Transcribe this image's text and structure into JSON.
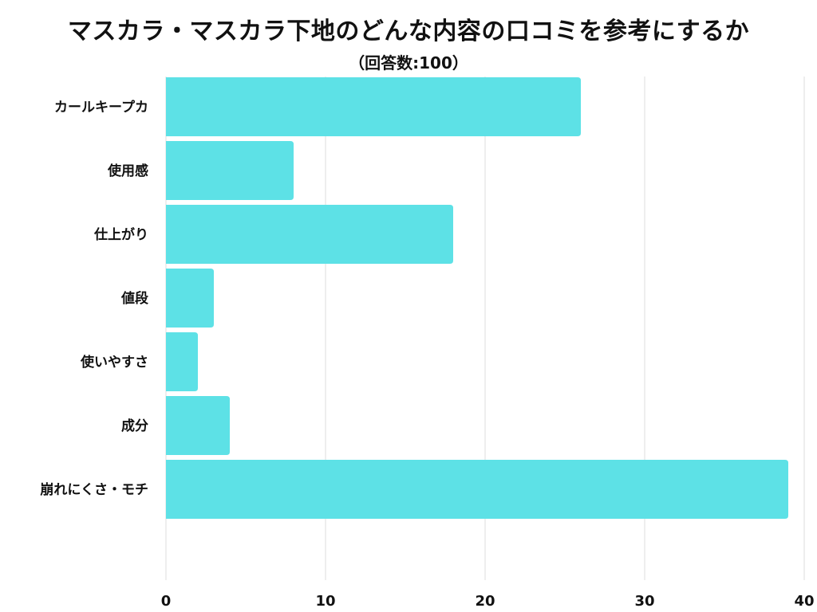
{
  "chart_data": {
    "type": "bar",
    "orientation": "horizontal",
    "title": "マスカラ・マスカラ下地のどんな内容の口コミを参考にするか",
    "subtitle": "（回答数:100）",
    "categories": [
      "カールキープカ",
      "使用感",
      "仕上がり",
      "値段",
      "使いやすさ",
      "成分",
      "崩れにくさ・モチ"
    ],
    "values": [
      26,
      8,
      18,
      3,
      2,
      4,
      39
    ],
    "xlim": [
      0,
      40
    ],
    "xticks": [
      "0",
      "10",
      "20",
      "30",
      "40"
    ],
    "grid": true,
    "bar_color": "#5de1e6",
    "grid_color": "#dddddd"
  }
}
